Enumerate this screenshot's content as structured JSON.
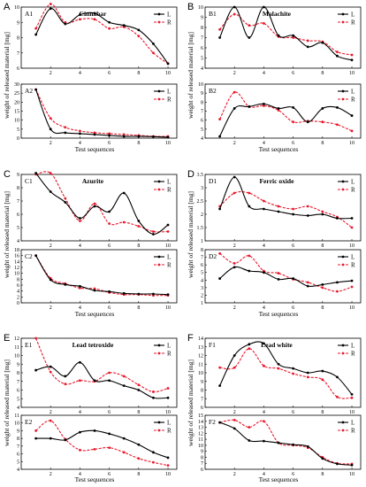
{
  "figure": {
    "ylabel": "weight of released material [mg]",
    "xlabel": "Test sequences",
    "legend": [
      "L",
      "R"
    ],
    "line_colors": {
      "L": "#000000",
      "R": "#e8192c"
    }
  },
  "chart_data": [
    {
      "id": "A1",
      "type": "line",
      "letter": "A",
      "title": "Cinnabar",
      "panel_label": "A1",
      "x": [
        1,
        2,
        3,
        4,
        5,
        6,
        7,
        8,
        9,
        10
      ],
      "series": [
        {
          "name": "L",
          "values": [
            8.2,
            9.9,
            8.9,
            9.5,
            9.6,
            9.0,
            8.8,
            8.5,
            7.6,
            6.3
          ]
        },
        {
          "name": "R",
          "values": [
            8.6,
            10.2,
            9.0,
            9.2,
            9.2,
            8.6,
            8.7,
            8.1,
            7.0,
            6.3
          ]
        }
      ],
      "ylim": [
        6,
        10
      ],
      "yticks": [
        6,
        7,
        8,
        9,
        10
      ],
      "xticks": [
        2,
        4,
        6,
        8,
        10
      ],
      "legend": "top-right"
    },
    {
      "id": "A2",
      "type": "line",
      "panel_label": "A2",
      "x": [
        1,
        2,
        3,
        4,
        5,
        6,
        7,
        8,
        9,
        10
      ],
      "series": [
        {
          "name": "L",
          "values": [
            27,
            5,
            3,
            2.5,
            2,
            1.5,
            1,
            1,
            0.8,
            0.5
          ]
        },
        {
          "name": "R",
          "values": [
            27,
            11,
            6,
            4,
            3,
            2.5,
            2,
            1.5,
            1,
            1
          ]
        }
      ],
      "ylim": [
        0,
        30
      ],
      "yticks": [
        0,
        5,
        10,
        15,
        20,
        25,
        30
      ],
      "xticks": [
        2,
        4,
        6,
        8,
        10
      ],
      "legend": "top-right"
    },
    {
      "id": "B1",
      "type": "line",
      "letter": "B",
      "title": "Malachite",
      "panel_label": "B1",
      "x": [
        1,
        2,
        3,
        4,
        5,
        6,
        7,
        8,
        9,
        10
      ],
      "series": [
        {
          "name": "L",
          "values": [
            7,
            10,
            7,
            10,
            7.2,
            7.2,
            6.1,
            6.5,
            5.2,
            4.8
          ]
        },
        {
          "name": "R",
          "values": [
            7.8,
            9.3,
            8.2,
            8.4,
            7.1,
            7.0,
            6.7,
            6.6,
            5.6,
            5.3
          ]
        }
      ],
      "ylim": [
        4,
        10
      ],
      "yticks": [
        4,
        5,
        6,
        7,
        8,
        9,
        10
      ],
      "xticks": [
        2,
        4,
        6,
        8,
        10
      ],
      "legend": "top-right"
    },
    {
      "id": "B2",
      "type": "line",
      "panel_label": "B2",
      "x": [
        1,
        2,
        3,
        4,
        5,
        6,
        7,
        8,
        9,
        10
      ],
      "series": [
        {
          "name": "L",
          "values": [
            4.2,
            7.3,
            7.5,
            7.8,
            7.3,
            7.4,
            5.8,
            7.3,
            7.4,
            6.5
          ]
        },
        {
          "name": "R",
          "values": [
            6.1,
            9.1,
            7.5,
            7.6,
            7.1,
            5.8,
            5.9,
            5.8,
            5.5,
            4.8
          ]
        }
      ],
      "ylim": [
        4,
        10
      ],
      "yticks": [
        4,
        5,
        6,
        7,
        8,
        9,
        10
      ],
      "xticks": [
        2,
        4,
        6,
        8,
        10
      ],
      "legend": "top-right"
    },
    {
      "id": "C1",
      "type": "line",
      "letter": "C",
      "title": "Azurite",
      "panel_label": "C1",
      "x": [
        1,
        2,
        3,
        4,
        5,
        6,
        7,
        8,
        9,
        10
      ],
      "series": [
        {
          "name": "L",
          "values": [
            9.1,
            7.7,
            6.9,
            5.7,
            6.6,
            6.2,
            7.6,
            5.5,
            4.5,
            5.2
          ]
        },
        {
          "name": "R",
          "values": [
            9.0,
            9.1,
            7.2,
            5.5,
            6.8,
            5.3,
            5.4,
            5.1,
            4.7,
            4.7
          ]
        }
      ],
      "ylim": [
        4,
        9
      ],
      "yticks": [
        4,
        5,
        6,
        7,
        8,
        9
      ],
      "xticks": [
        2,
        4,
        6,
        8,
        10
      ],
      "legend": "top-right"
    },
    {
      "id": "C2",
      "type": "line",
      "panel_label": "C2",
      "x": [
        1,
        2,
        3,
        4,
        5,
        6,
        7,
        8,
        9,
        10
      ],
      "series": [
        {
          "name": "L",
          "values": [
            16,
            7.8,
            6.2,
            5.6,
            4.2,
            3.8,
            3.2,
            3.0,
            3.0,
            2.8
          ]
        },
        {
          "name": "R",
          "values": [
            16,
            8.3,
            6.5,
            5.0,
            4.8,
            3.5,
            2.8,
            2.8,
            2.5,
            2.5
          ]
        }
      ],
      "ylim": [
        0,
        18
      ],
      "yticks": [
        0,
        2,
        4,
        6,
        8,
        10,
        12,
        14,
        16,
        18
      ],
      "xticks": [
        2,
        4,
        6,
        8,
        10
      ],
      "legend": "top-right"
    },
    {
      "id": "D1",
      "type": "line",
      "letter": "D",
      "title": "Ferric oxide",
      "panel_label": "D1",
      "x": [
        1,
        2,
        3,
        4,
        5,
        6,
        7,
        8,
        9,
        10
      ],
      "series": [
        {
          "name": "L",
          "values": [
            2.2,
            3.4,
            2.3,
            2.2,
            2.1,
            2.0,
            1.95,
            2.0,
            1.85,
            1.85
          ]
        },
        {
          "name": "R",
          "values": [
            2.3,
            2.8,
            2.8,
            2.5,
            2.3,
            2.2,
            2.3,
            2.1,
            1.9,
            1.5
          ]
        }
      ],
      "ylim": [
        1,
        3.5
      ],
      "yticks": [
        1,
        1.5,
        2,
        2.5,
        3,
        3.5
      ],
      "xticks": [
        2,
        4,
        6,
        8,
        10
      ],
      "legend": "top-right"
    },
    {
      "id": "D2",
      "type": "line",
      "panel_label": "D2",
      "x": [
        1,
        2,
        3,
        4,
        5,
        6,
        7,
        8,
        9,
        10
      ],
      "series": [
        {
          "name": "L",
          "values": [
            4.2,
            5.7,
            5.2,
            5.0,
            4.1,
            4.2,
            3.2,
            3.4,
            3.7,
            3.9
          ]
        },
        {
          "name": "R",
          "values": [
            7.5,
            6.2,
            7.2,
            5.2,
            4.9,
            4.1,
            3.7,
            3.0,
            2.5,
            3.1
          ]
        }
      ],
      "ylim": [
        1,
        8
      ],
      "yticks": [
        1,
        2,
        3,
        4,
        5,
        6,
        7,
        8
      ],
      "xticks": [
        2,
        4,
        6,
        8,
        10
      ],
      "legend": "top-right"
    },
    {
      "id": "E1",
      "type": "line",
      "letter": "E",
      "title": "Lead tetroxide",
      "panel_label": "E1",
      "x": [
        1,
        2,
        3,
        4,
        5,
        6,
        7,
        8,
        9,
        10
      ],
      "series": [
        {
          "name": "L",
          "values": [
            8.3,
            8.7,
            7.6,
            9.2,
            7.1,
            7.1,
            6.5,
            6.0,
            5.1,
            5.1
          ]
        },
        {
          "name": "R",
          "values": [
            12,
            8.1,
            6.7,
            7.1,
            7.0,
            8.0,
            7.6,
            6.6,
            5.8,
            6.2
          ]
        }
      ],
      "ylim": [
        4,
        12
      ],
      "yticks": [
        4,
        5,
        6,
        7,
        8,
        9,
        10,
        11,
        12
      ],
      "xticks": [
        2,
        4,
        6,
        8,
        10
      ],
      "legend": "top-right"
    },
    {
      "id": "E2",
      "type": "line",
      "panel_label": "E2",
      "x": [
        1,
        2,
        3,
        4,
        5,
        6,
        7,
        8,
        9,
        10
      ],
      "series": [
        {
          "name": "L",
          "values": [
            8.0,
            8.0,
            7.8,
            8.8,
            9.0,
            8.6,
            8.0,
            7.2,
            6.2,
            5.5
          ]
        },
        {
          "name": "R",
          "values": [
            9.0,
            10.3,
            7.9,
            6.5,
            6.6,
            6.8,
            6.2,
            5.4,
            4.9,
            4.5
          ]
        }
      ],
      "ylim": [
        4,
        11
      ],
      "yticks": [
        4,
        5,
        6,
        7,
        8,
        9,
        10,
        11
      ],
      "xticks": [
        2,
        4,
        6,
        8,
        10
      ],
      "legend": "top-right"
    },
    {
      "id": "F1",
      "type": "line",
      "letter": "F",
      "title": "Lead white",
      "panel_label": "F1",
      "x": [
        1,
        2,
        3,
        4,
        5,
        6,
        7,
        8,
        9,
        10
      ],
      "series": [
        {
          "name": "L",
          "values": [
            8.5,
            12.0,
            13.3,
            13.4,
            11.0,
            10.5,
            10.0,
            10.2,
            9.5,
            7.5
          ]
        },
        {
          "name": "R",
          "values": [
            10.6,
            10.6,
            12.8,
            10.8,
            10.5,
            9.9,
            9.5,
            9.2,
            7.2,
            7.1
          ]
        }
      ],
      "ylim": [
        6,
        14
      ],
      "yticks": [
        6,
        7,
        8,
        9,
        10,
        11,
        12,
        13,
        14
      ],
      "xticks": [
        2,
        4,
        6,
        8,
        10
      ],
      "legend": "top-right"
    },
    {
      "id": "F2",
      "type": "line",
      "panel_label": "F2",
      "x": [
        1,
        2,
        3,
        4,
        5,
        6,
        7,
        8,
        9,
        10
      ],
      "series": [
        {
          "name": "L",
          "values": [
            13.8,
            12.8,
            10.8,
            10.7,
            10.4,
            10.1,
            9.8,
            7.8,
            6.9,
            6.7
          ]
        },
        {
          "name": "R",
          "values": [
            13.8,
            14.2,
            13.0,
            14.0,
            10.4,
            10.0,
            9.6,
            8.0,
            7.0,
            6.9
          ]
        }
      ],
      "ylim": [
        6,
        15
      ],
      "yticks": [
        6,
        7,
        8,
        9,
        10,
        11,
        12,
        13,
        14,
        15
      ],
      "xticks": [
        2,
        4,
        6,
        8,
        10
      ],
      "legend": "top-right"
    }
  ]
}
